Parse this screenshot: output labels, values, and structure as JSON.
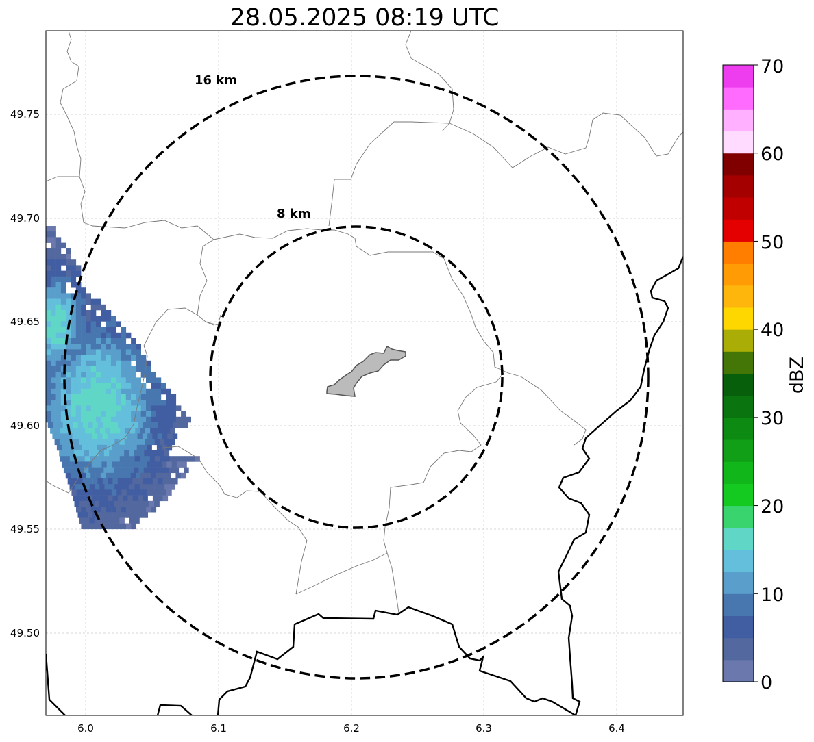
{
  "title": "28.05.2025 08:19 UTC",
  "map": {
    "lon_range": [
      5.97,
      6.45
    ],
    "lat_range": [
      49.46,
      49.79
    ],
    "grid": true,
    "x_ticks": [
      "6.0",
      "6.1",
      "6.2",
      "6.3",
      "6.4"
    ],
    "y_ticks": [
      "49.50",
      "49.55",
      "49.60",
      "49.65",
      "49.70",
      "49.75"
    ],
    "rings": [
      {
        "label": "8 km",
        "radius_km": 8
      },
      {
        "label": "16 km",
        "radius_km": 16
      }
    ],
    "center": {
      "lon": 6.204,
      "lat": 49.623
    },
    "colors": {
      "ring": "#000000",
      "border_national": "#000000",
      "border_admin": "#777777",
      "city_fill": "#bbbbbb",
      "grid": "#c8c8c8"
    }
  },
  "colorbar": {
    "label": "dBZ",
    "min": 0,
    "max": 70,
    "ticks": [
      "0",
      "10",
      "20",
      "30",
      "40",
      "50",
      "60",
      "70"
    ],
    "colors": [
      "#6a78ad",
      "#52689f",
      "#425ea2",
      "#4877b0",
      "#5a9fcb",
      "#63bfdc",
      "#60d6c6",
      "#3ad46e",
      "#14c91f",
      "#11b61a",
      "#109f16",
      "#0d8a12",
      "#0a750f",
      "#075f0c",
      "#437607",
      "#a9ad05",
      "#ffd700",
      "#ffb60c",
      "#ff9b05",
      "#ff7e00",
      "#e40000",
      "#c00000",
      "#a40000",
      "#800000",
      "#ffdcff",
      "#ffb0ff",
      "#ff6aff",
      "#ee3def"
    ]
  }
}
